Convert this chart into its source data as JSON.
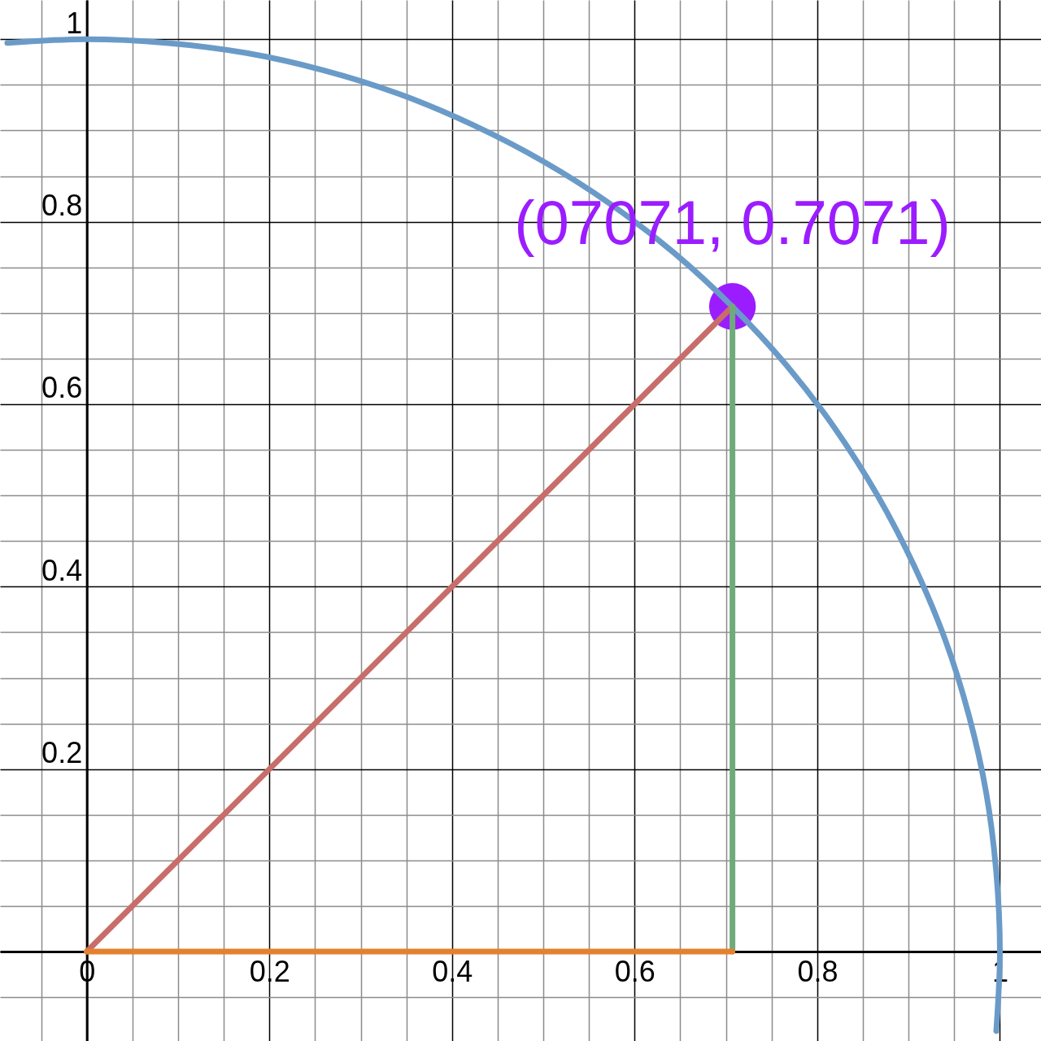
{
  "chart_data": {
    "type": "line",
    "xlim": [
      -0.095,
      1.045
    ],
    "ylim": [
      -0.098,
      1.043
    ],
    "xticks": [
      {
        "value": -0.05,
        "label": null
      },
      {
        "value": 0,
        "label": "0"
      },
      {
        "value": 0.05,
        "label": null
      },
      {
        "value": 0.1,
        "label": null
      },
      {
        "value": 0.15,
        "label": null
      },
      0.2,
      {
        "value": 0.25,
        "label": null
      },
      {
        "value": 0.3,
        "label": null
      },
      {
        "value": 0.35,
        "label": null
      },
      0.4,
      {
        "value": 0.45,
        "label": null
      },
      {
        "value": 0.5,
        "label": null
      },
      {
        "value": 0.55,
        "label": null
      },
      0.6,
      {
        "value": 0.65,
        "label": null
      },
      {
        "value": 0.7,
        "label": null
      },
      {
        "value": 0.75,
        "label": null
      },
      0.8,
      {
        "value": 0.85,
        "label": null
      },
      {
        "value": 0.9,
        "label": null
      },
      {
        "value": 0.95,
        "label": null
      },
      1
    ],
    "yticks": [
      {
        "value": -0.05,
        "label": null
      },
      {
        "value": 0,
        "label": null
      },
      {
        "value": 0.05,
        "label": null
      },
      {
        "value": 0.1,
        "label": null
      },
      {
        "value": 0.15,
        "label": null
      },
      0.2,
      {
        "value": 0.25,
        "label": null
      },
      {
        "value": 0.3,
        "label": null
      },
      {
        "value": 0.35,
        "label": null
      },
      0.4,
      {
        "value": 0.45,
        "label": null
      },
      {
        "value": 0.5,
        "label": null
      },
      {
        "value": 0.55,
        "label": null
      },
      0.6,
      {
        "value": 0.65,
        "label": null
      },
      {
        "value": 0.7,
        "label": null
      },
      {
        "value": 0.75,
        "label": null
      },
      0.8,
      {
        "value": 0.85,
        "label": null
      },
      {
        "value": 0.9,
        "label": null
      },
      {
        "value": 0.95,
        "label": null
      },
      1
    ],
    "grid": true,
    "series": [
      {
        "color": "#6a9bc8",
        "x": [
          -0.087,
          0,
          0.087,
          0.174,
          0.259,
          0.342,
          0.423,
          0.5,
          0.574,
          0.643,
          0.707,
          0.766,
          0.819,
          0.866,
          0.906,
          0.94,
          0.966,
          0.985,
          0.996,
          1,
          0.996
        ],
        "values": [
          0.996,
          1,
          0.996,
          0.985,
          0.966,
          0.94,
          0.906,
          0.866,
          0.819,
          0.766,
          0.707,
          0.643,
          0.574,
          0.5,
          0.423,
          0.342,
          0.259,
          0.174,
          0.087,
          0,
          -0.087
        ]
      },
      {
        "color": "#c86d6a",
        "x": [
          0,
          0.7071
        ],
        "values": [
          0,
          0.7071
        ]
      },
      {
        "color": "#6fab7a",
        "x": [
          0.7071,
          0.7071
        ],
        "values": [
          0,
          0.7071
        ]
      },
      {
        "color": "#e3812e",
        "x": [
          0,
          0.7071
        ],
        "values": [
          0,
          0
        ]
      },
      {
        "type": "scatter",
        "color": "#9b1dff",
        "marker": "circle",
        "x": [
          0.7071
        ],
        "values": [
          0.7071
        ]
      }
    ],
    "annotations": [
      {
        "text": "(07071, 0.7071)",
        "x": 0.7071,
        "y": 0.7071
      }
    ]
  }
}
